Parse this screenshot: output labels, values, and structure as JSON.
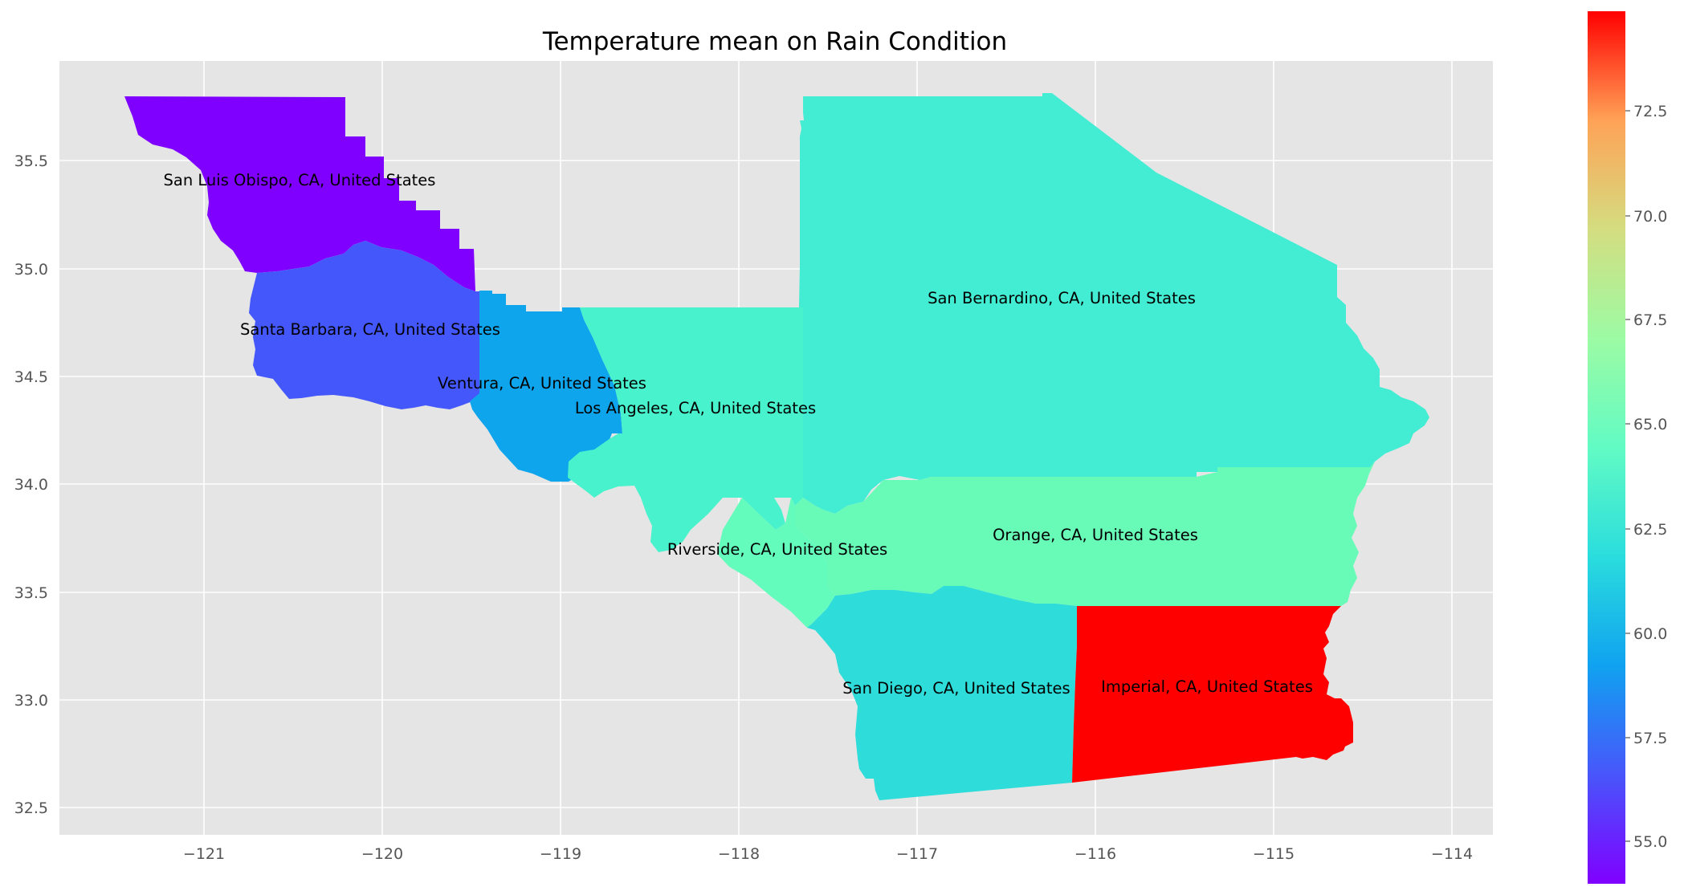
{
  "chart_data": {
    "type": "choropleth",
    "title": "Temperature mean on Rain Condition",
    "xlabel": "",
    "ylabel": "",
    "xlim": [
      -121.8,
      -113.8
    ],
    "ylim": [
      32.36,
      35.97
    ],
    "x_ticks": [
      "−121",
      "−120",
      "−119",
      "−118",
      "−117",
      "−116",
      "−115",
      "−114"
    ],
    "y_ticks": [
      "32.5",
      "33.0",
      "33.5",
      "34.0",
      "34.5",
      "35.0",
      "35.5"
    ],
    "grid": true,
    "colormap": "rainbow",
    "colorbar": {
      "min": 54.2,
      "max": 74.9,
      "ticks": [
        "55.0",
        "57.5",
        "60.0",
        "62.5",
        "65.0",
        "67.5",
        "70.0",
        "72.5"
      ]
    },
    "regions": [
      {
        "name": "San Luis Obispo, CA, United States",
        "value": 54.2,
        "color": "#8000ff"
      },
      {
        "name": "Santa Barbara, CA, United States",
        "value": 56.5,
        "color": "#4457fb"
      },
      {
        "name": "Ventura, CA, United States",
        "value": 58.7,
        "color": "#0ea5ec"
      },
      {
        "name": "Los Angeles, CA, United States",
        "value": 62.6,
        "color": "#48f2cd"
      },
      {
        "name": "San Bernardino, CA, United States",
        "value": 62.3,
        "color": "#42edd3"
      },
      {
        "name": "Orange, CA, United States",
        "value": 64.3,
        "color": "#68fbb8"
      },
      {
        "name": "Riverside, CA, United States",
        "value": 64.0,
        "color": "#64fcbc"
      },
      {
        "name": "San Diego, CA, United States",
        "value": 61.0,
        "color": "#2edcd9"
      },
      {
        "name": "Imperial, CA, United States",
        "value": 74.9,
        "color": "#ff0000"
      }
    ]
  },
  "colors": {
    "axes_background": "#e5e5e5",
    "grid": "#ffffff",
    "tick_text": "#555555"
  }
}
